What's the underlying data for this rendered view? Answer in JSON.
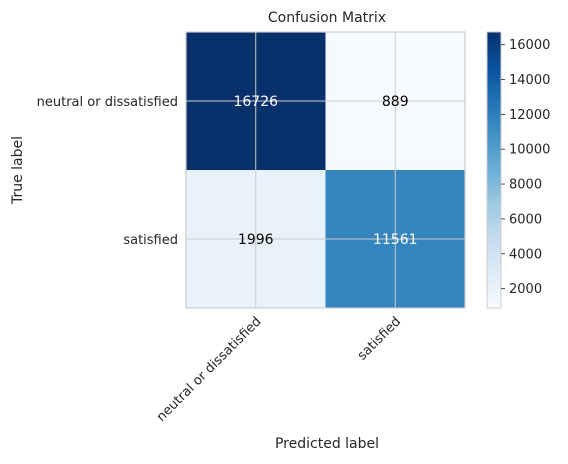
{
  "chart_data": {
    "type": "heatmap",
    "title": "Confusion Matrix",
    "xlabel": "Predicted label",
    "ylabel": "True label",
    "row_labels": [
      "neutral or dissatisfied",
      "satisfied"
    ],
    "col_labels": [
      "neutral or dissatisfied",
      "satisfied"
    ],
    "values": [
      [
        16726,
        889
      ],
      [
        1996,
        11561
      ]
    ],
    "cell_text": [
      [
        "16726",
        "889"
      ],
      [
        "1996",
        "11561"
      ]
    ],
    "colormap": "Blues",
    "vmin": 889,
    "vmax": 16726,
    "colorbar_ticks": [
      2000,
      4000,
      6000,
      8000,
      10000,
      12000,
      14000,
      16000
    ],
    "colorbar_tick_labels": [
      "2000",
      "4000",
      "6000",
      "8000",
      "10000",
      "12000",
      "14000",
      "16000"
    ],
    "grid": true
  }
}
